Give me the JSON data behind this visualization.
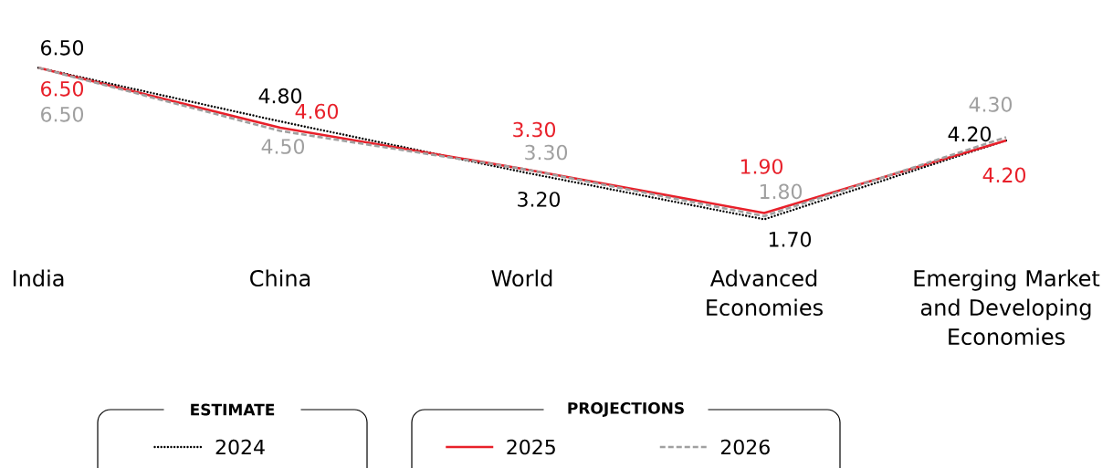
{
  "chart_data": {
    "type": "line",
    "categories": [
      "India",
      "China",
      "World",
      "Advanced Economies",
      "Emerging Market and Developing Economies"
    ],
    "series": [
      {
        "name": "2024",
        "color": "#000000",
        "line_style": "dotted",
        "values": [
          6.5,
          4.8,
          3.2,
          1.7,
          4.2
        ],
        "value_labels": [
          "6.50",
          "4.80",
          "3.20",
          "1.70",
          "4.20"
        ]
      },
      {
        "name": "2025",
        "color": "#e8202a",
        "line_style": "solid",
        "values": [
          6.5,
          4.6,
          3.3,
          1.9,
          4.2
        ],
        "value_labels": [
          "6.50",
          "4.60",
          "3.30",
          "1.90",
          "4.20"
        ]
      },
      {
        "name": "2026",
        "color": "#a0a0a0",
        "line_style": "dashed",
        "values": [
          6.5,
          4.5,
          3.3,
          1.8,
          4.3
        ],
        "value_labels": [
          "6.50",
          "4.50",
          "3.30",
          "1.80",
          "4.30"
        ]
      }
    ],
    "marker": "none",
    "legend": "bottom",
    "annotations": [
      "ESTIMATE",
      "PROJECTIONS"
    ]
  }
}
